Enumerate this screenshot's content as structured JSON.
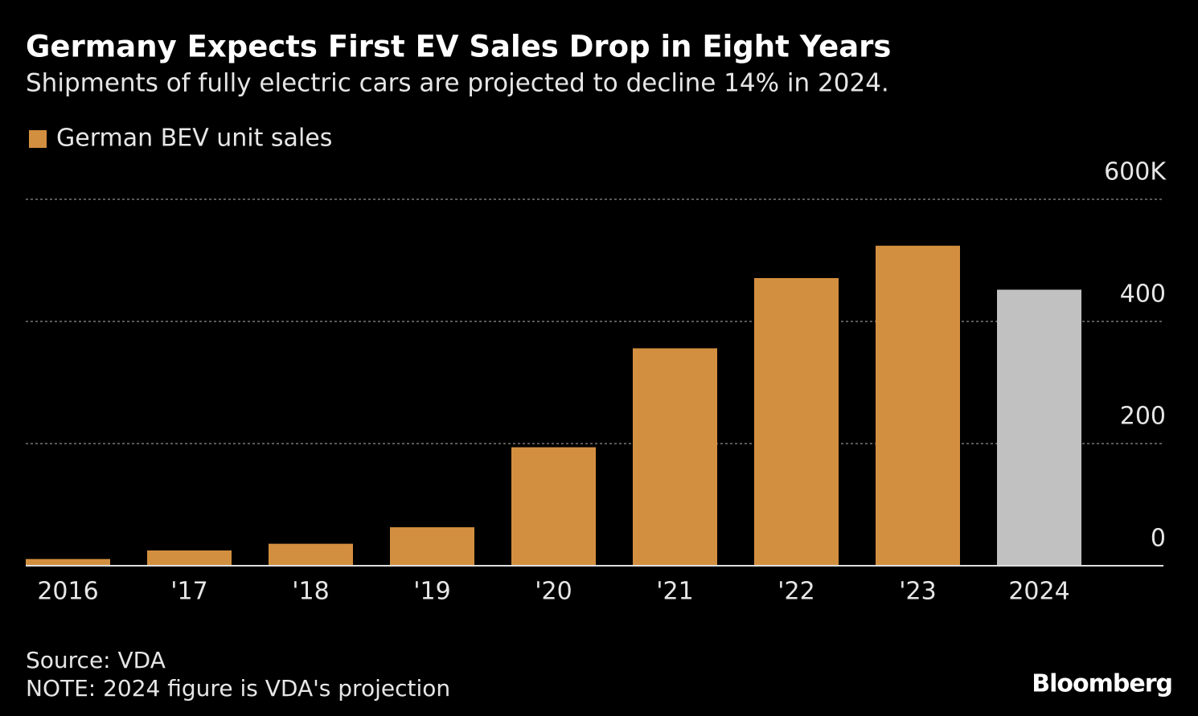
{
  "chart_data": {
    "type": "bar",
    "title": "Germany Expects First EV Sales Drop in Eight Years",
    "subtitle": "Shipments of fully electric cars are projected to decline 14% in 2024.",
    "categories": [
      "2016",
      "'17",
      "'18",
      "'19",
      "'20",
      "'21",
      "'22",
      "'23",
      "2024"
    ],
    "series": [
      {
        "name": "German BEV unit sales",
        "color": "#d38f40",
        "values": [
          11,
          25,
          36,
          63,
          194,
          356,
          471,
          524,
          452
        ]
      }
    ],
    "colors": [
      "#d38f40",
      "#d38f40",
      "#d38f40",
      "#d38f40",
      "#d38f40",
      "#d38f40",
      "#d38f40",
      "#d38f40",
      "#c1c1c1"
    ],
    "ylim": [
      0,
      600
    ],
    "yticks": [
      0,
      200,
      400,
      {
        "value": 600,
        "label": "600K"
      }
    ],
    "grid": true,
    "source": "Source: VDA",
    "note": "NOTE: 2024 figure is VDA's projection",
    "credit": "Bloomberg"
  }
}
